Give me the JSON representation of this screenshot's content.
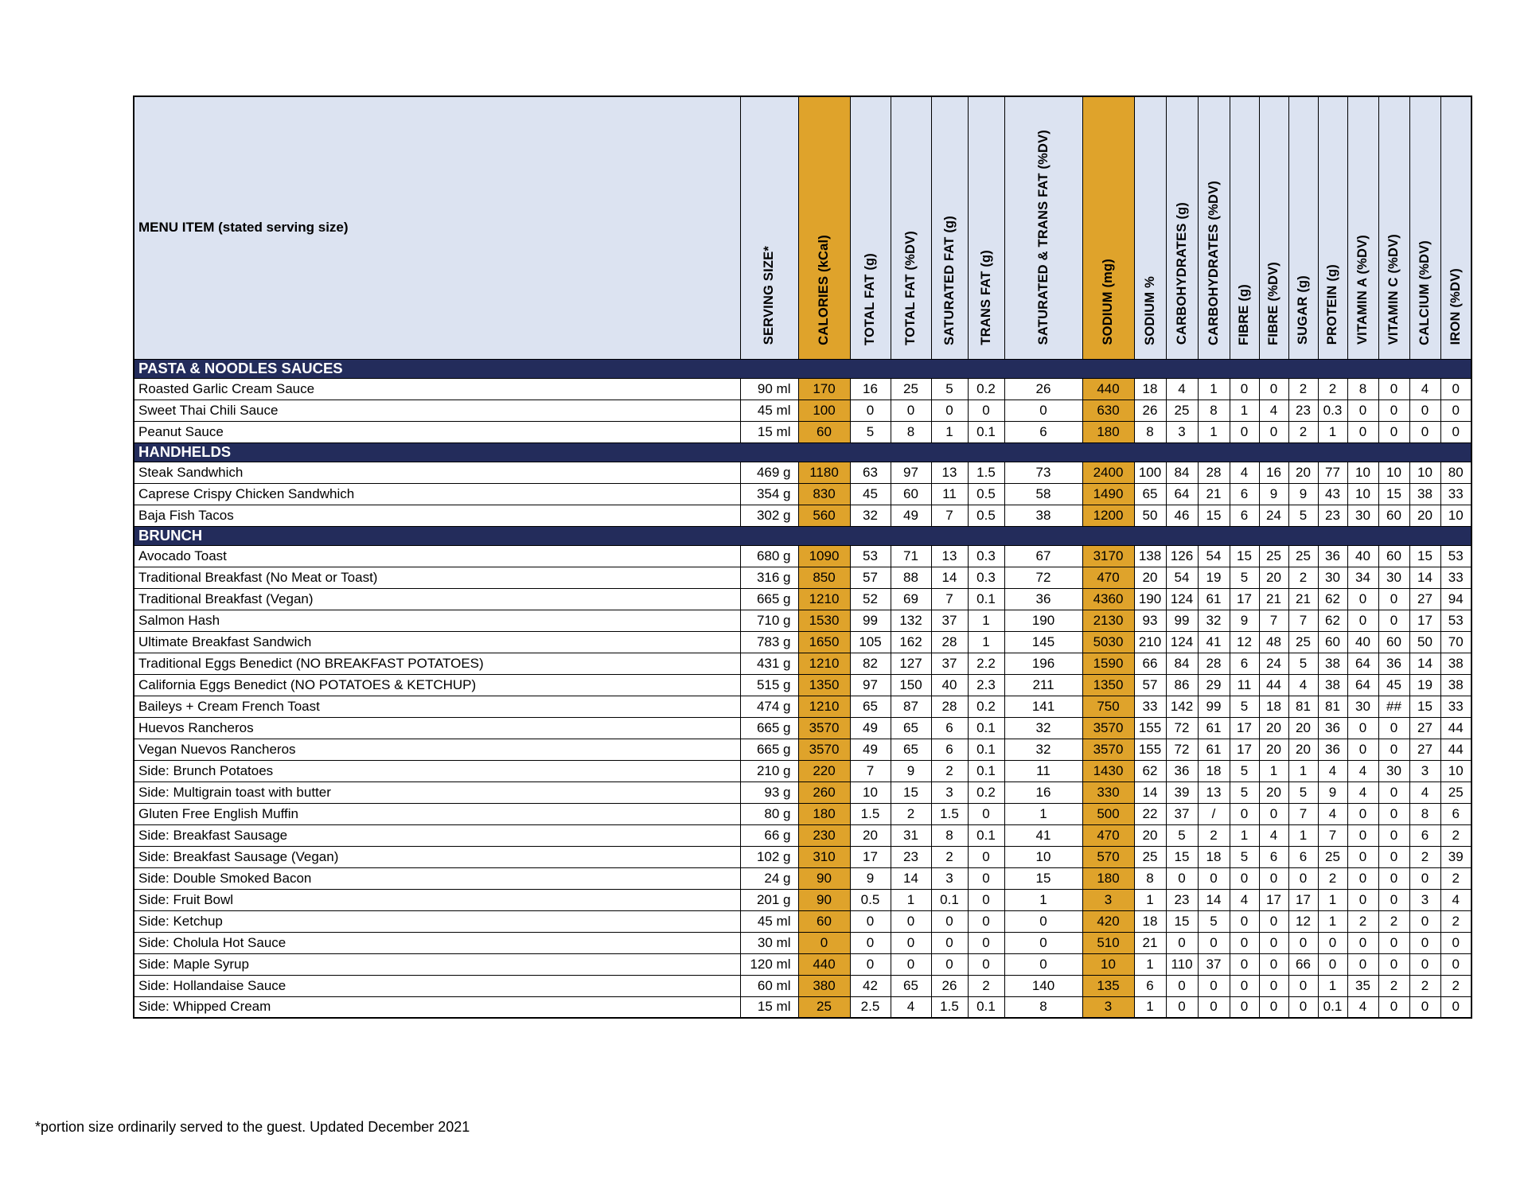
{
  "colors": {
    "highlight": "#DFA32B",
    "section_bg": "#232C5B",
    "header_bg": "#DCE3F1"
  },
  "footnote": "*portion size ordinarily served to the guest. Updated December 2021",
  "header": {
    "menu_item": "MENU ITEM (stated serving size)",
    "columns": [
      {
        "label": "SERVING SIZE*",
        "highlight": false
      },
      {
        "label": "CALORIES (kCal)",
        "highlight": true
      },
      {
        "label": "TOTAL FAT (g)",
        "highlight": false
      },
      {
        "label": "TOTAL FAT (%DV)",
        "highlight": false
      },
      {
        "label": "SATURATED FAT (g)",
        "highlight": false
      },
      {
        "label": "TRANS FAT (g)",
        "highlight": false
      },
      {
        "label": "SATURATED & TRANS FAT (%DV)",
        "highlight": false
      },
      {
        "label": "SODIUM (mg)",
        "highlight": true
      },
      {
        "label": "SODIUM %",
        "highlight": false
      },
      {
        "label": "CARBOHYDRATES (g)",
        "highlight": false
      },
      {
        "label": "CARBOHYDRATES (%DV)",
        "highlight": false
      },
      {
        "label": "FIBRE (g)",
        "highlight": false
      },
      {
        "label": "FIBRE (%DV)",
        "highlight": false
      },
      {
        "label": "SUGAR (g)",
        "highlight": false
      },
      {
        "label": "PROTEIN (g)",
        "highlight": false
      },
      {
        "label": "VITAMIN A (%DV)",
        "highlight": false
      },
      {
        "label": "VITAMIN C (%DV)",
        "highlight": false
      },
      {
        "label": "CALCIUM (%DV)",
        "highlight": false
      },
      {
        "label": "IRON (%DV)",
        "highlight": false
      }
    ]
  },
  "sections": [
    {
      "title": "PASTA & NOODLES SAUCES",
      "rows": [
        {
          "name": "Roasted Garlic Cream Sauce",
          "values": [
            "90 ml",
            "170",
            "16",
            "25",
            "5",
            "0.2",
            "26",
            "440",
            "18",
            "4",
            "1",
            "0",
            "0",
            "2",
            "2",
            "8",
            "0",
            "4",
            "0"
          ]
        },
        {
          "name": "Sweet Thai Chili Sauce",
          "values": [
            "45 ml",
            "100",
            "0",
            "0",
            "0",
            "0",
            "0",
            "630",
            "26",
            "25",
            "8",
            "1",
            "4",
            "23",
            "0.3",
            "0",
            "0",
            "0",
            "0"
          ]
        },
        {
          "name": "Peanut Sauce",
          "values": [
            "15 ml",
            "60",
            "5",
            "8",
            "1",
            "0.1",
            "6",
            "180",
            "8",
            "3",
            "1",
            "0",
            "0",
            "2",
            "1",
            "0",
            "0",
            "0",
            "0"
          ]
        }
      ]
    },
    {
      "title": "HANDHELDS",
      "rows": [
        {
          "name": "Steak Sandwhich",
          "values": [
            "469 g",
            "1180",
            "63",
            "97",
            "13",
            "1.5",
            "73",
            "2400",
            "100",
            "84",
            "28",
            "4",
            "16",
            "20",
            "77",
            "10",
            "10",
            "10",
            "80"
          ]
        },
        {
          "name": "Caprese Crispy Chicken Sandwhich",
          "values": [
            "354 g",
            "830",
            "45",
            "60",
            "11",
            "0.5",
            "58",
            "1490",
            "65",
            "64",
            "21",
            "6",
            "9",
            "9",
            "43",
            "10",
            "15",
            "38",
            "33"
          ]
        },
        {
          "name": "Baja Fish Tacos",
          "values": [
            "302 g",
            "560",
            "32",
            "49",
            "7",
            "0.5",
            "38",
            "1200",
            "50",
            "46",
            "15",
            "6",
            "24",
            "5",
            "23",
            "30",
            "60",
            "20",
            "10"
          ]
        }
      ]
    },
    {
      "title": "BRUNCH",
      "rows": [
        {
          "name": "Avocado Toast",
          "values": [
            "680 g",
            "1090",
            "53",
            "71",
            "13",
            "0.3",
            "67",
            "3170",
            "138",
            "126",
            "54",
            "15",
            "25",
            "25",
            "36",
            "40",
            "60",
            "15",
            "53"
          ]
        },
        {
          "name": "Traditional Breakfast (No Meat or Toast)",
          "values": [
            "316 g",
            "850",
            "57",
            "88",
            "14",
            "0.3",
            "72",
            "470",
            "20",
            "54",
            "19",
            "5",
            "20",
            "2",
            "30",
            "34",
            "30",
            "14",
            "33"
          ]
        },
        {
          "name": "Traditional Breakfast (Vegan)",
          "values": [
            "665 g",
            "1210",
            "52",
            "69",
            "7",
            "0.1",
            "36",
            "4360",
            "190",
            "124",
            "61",
            "17",
            "21",
            "21",
            "62",
            "0",
            "0",
            "27",
            "94"
          ]
        },
        {
          "name": "Salmon Hash",
          "values": [
            "710 g",
            "1530",
            "99",
            "132",
            "37",
            "1",
            "190",
            "2130",
            "93",
            "99",
            "32",
            "9",
            "7",
            "7",
            "62",
            "0",
            "0",
            "17",
            "53"
          ]
        },
        {
          "name": "Ultimate Breakfast Sandwich",
          "values": [
            "783 g",
            "1650",
            "105",
            "162",
            "28",
            "1",
            "145",
            "5030",
            "210",
            "124",
            "41",
            "12",
            "48",
            "25",
            "60",
            "40",
            "60",
            "50",
            "70"
          ]
        },
        {
          "name": "Traditional Eggs Benedict   (NO BREAKFAST POTATOES)",
          "values": [
            "431 g",
            "1210",
            "82",
            "127",
            "37",
            "2.2",
            "196",
            "1590",
            "66",
            "84",
            "28",
            "6",
            "24",
            "5",
            "38",
            "64",
            "36",
            "14",
            "38"
          ]
        },
        {
          "name": "California Eggs Benedict  (NO  POTATOES & KETCHUP)",
          "values": [
            "515 g",
            "1350",
            "97",
            "150",
            "40",
            "2.3",
            "211",
            "1350",
            "57",
            "86",
            "29",
            "11",
            "44",
            "4",
            "38",
            "64",
            "45",
            "19",
            "38"
          ]
        },
        {
          "name": "Baileys + Cream French Toast",
          "values": [
            "474 g",
            "1210",
            "65",
            "87",
            "28",
            "0.2",
            "141",
            "750",
            "33",
            "142",
            "99",
            "5",
            "18",
            "81",
            "81",
            "30",
            "##",
            "15",
            "33"
          ]
        },
        {
          "name": "Huevos Rancheros",
          "values": [
            "665 g",
            "3570",
            "49",
            "65",
            "6",
            "0.1",
            "32",
            "3570",
            "155",
            "72",
            "61",
            "17",
            "20",
            "20",
            "36",
            "0",
            "0",
            "27",
            "44"
          ]
        },
        {
          "name": "Vegan Nuevos Rancheros",
          "values": [
            "665 g",
            "3570",
            "49",
            "65",
            "6",
            "0.1",
            "32",
            "3570",
            "155",
            "72",
            "61",
            "17",
            "20",
            "20",
            "36",
            "0",
            "0",
            "27",
            "44"
          ]
        },
        {
          "name": "Side: Brunch Potatoes",
          "values": [
            "210 g",
            "220",
            "7",
            "9",
            "2",
            "0.1",
            "11",
            "1430",
            "62",
            "36",
            "18",
            "5",
            "1",
            "1",
            "4",
            "4",
            "30",
            "3",
            "10"
          ]
        },
        {
          "name": "Side: Multigrain toast with butter",
          "values": [
            "93 g",
            "260",
            "10",
            "15",
            "3",
            "0.2",
            "16",
            "330",
            "14",
            "39",
            "13",
            "5",
            "20",
            "5",
            "9",
            "4",
            "0",
            "4",
            "25"
          ]
        },
        {
          "name": "Gluten Free English Muffin",
          "values": [
            "80 g",
            "180",
            "1.5",
            "2",
            "1.5",
            "0",
            "1",
            "500",
            "22",
            "37",
            "/",
            "0",
            "0",
            "7",
            "4",
            "0",
            "0",
            "8",
            "6"
          ]
        },
        {
          "name": "Side: Breakfast Sausage",
          "values": [
            "66 g",
            "230",
            "20",
            "31",
            "8",
            "0.1",
            "41",
            "470",
            "20",
            "5",
            "2",
            "1",
            "4",
            "1",
            "7",
            "0",
            "0",
            "6",
            "2"
          ]
        },
        {
          "name": "Side: Breakfast Sausage (Vegan)",
          "values": [
            "102 g",
            "310",
            "17",
            "23",
            "2",
            "0",
            "10",
            "570",
            "25",
            "15",
            "18",
            "5",
            "6",
            "6",
            "25",
            "0",
            "0",
            "2",
            "39"
          ]
        },
        {
          "name": "Side: Double Smoked Bacon",
          "values": [
            "24 g",
            "90",
            "9",
            "14",
            "3",
            "0",
            "15",
            "180",
            "8",
            "0",
            "0",
            "0",
            "0",
            "0",
            "2",
            "0",
            "0",
            "0",
            "2"
          ]
        },
        {
          "name": "Side: Fruit Bowl",
          "values": [
            "201 g",
            "90",
            "0.5",
            "1",
            "0.1",
            "0",
            "1",
            "3",
            "1",
            "23",
            "14",
            "4",
            "17",
            "17",
            "1",
            "0",
            "0",
            "3",
            "4"
          ]
        },
        {
          "name": "Side: Ketchup",
          "values": [
            "45 ml",
            "60",
            "0",
            "0",
            "0",
            "0",
            "0",
            "420",
            "18",
            "15",
            "5",
            "0",
            "0",
            "12",
            "1",
            "2",
            "2",
            "0",
            "2"
          ]
        },
        {
          "name": "Side: Cholula Hot Sauce",
          "values": [
            "30 ml",
            "0",
            "0",
            "0",
            "0",
            "0",
            "0",
            "510",
            "21",
            "0",
            "0",
            "0",
            "0",
            "0",
            "0",
            "0",
            "0",
            "0",
            "0"
          ]
        },
        {
          "name": "Side: Maple Syrup",
          "values": [
            "120 ml",
            "440",
            "0",
            "0",
            "0",
            "0",
            "0",
            "10",
            "1",
            "110",
            "37",
            "0",
            "0",
            "66",
            "0",
            "0",
            "0",
            "0",
            "0"
          ]
        },
        {
          "name": "Side: Hollandaise Sauce",
          "values": [
            "60 ml",
            "380",
            "42",
            "65",
            "26",
            "2",
            "140",
            "135",
            "6",
            "0",
            "0",
            "0",
            "0",
            "0",
            "1",
            "35",
            "2",
            "2",
            "2"
          ]
        },
        {
          "name": "Side: Whipped Cream",
          "values": [
            "15 ml",
            "25",
            "2.5",
            "4",
            "1.5",
            "0.1",
            "8",
            "3",
            "1",
            "0",
            "0",
            "0",
            "0",
            "0",
            "0.1",
            "4",
            "0",
            "0",
            "0"
          ]
        }
      ]
    }
  ]
}
